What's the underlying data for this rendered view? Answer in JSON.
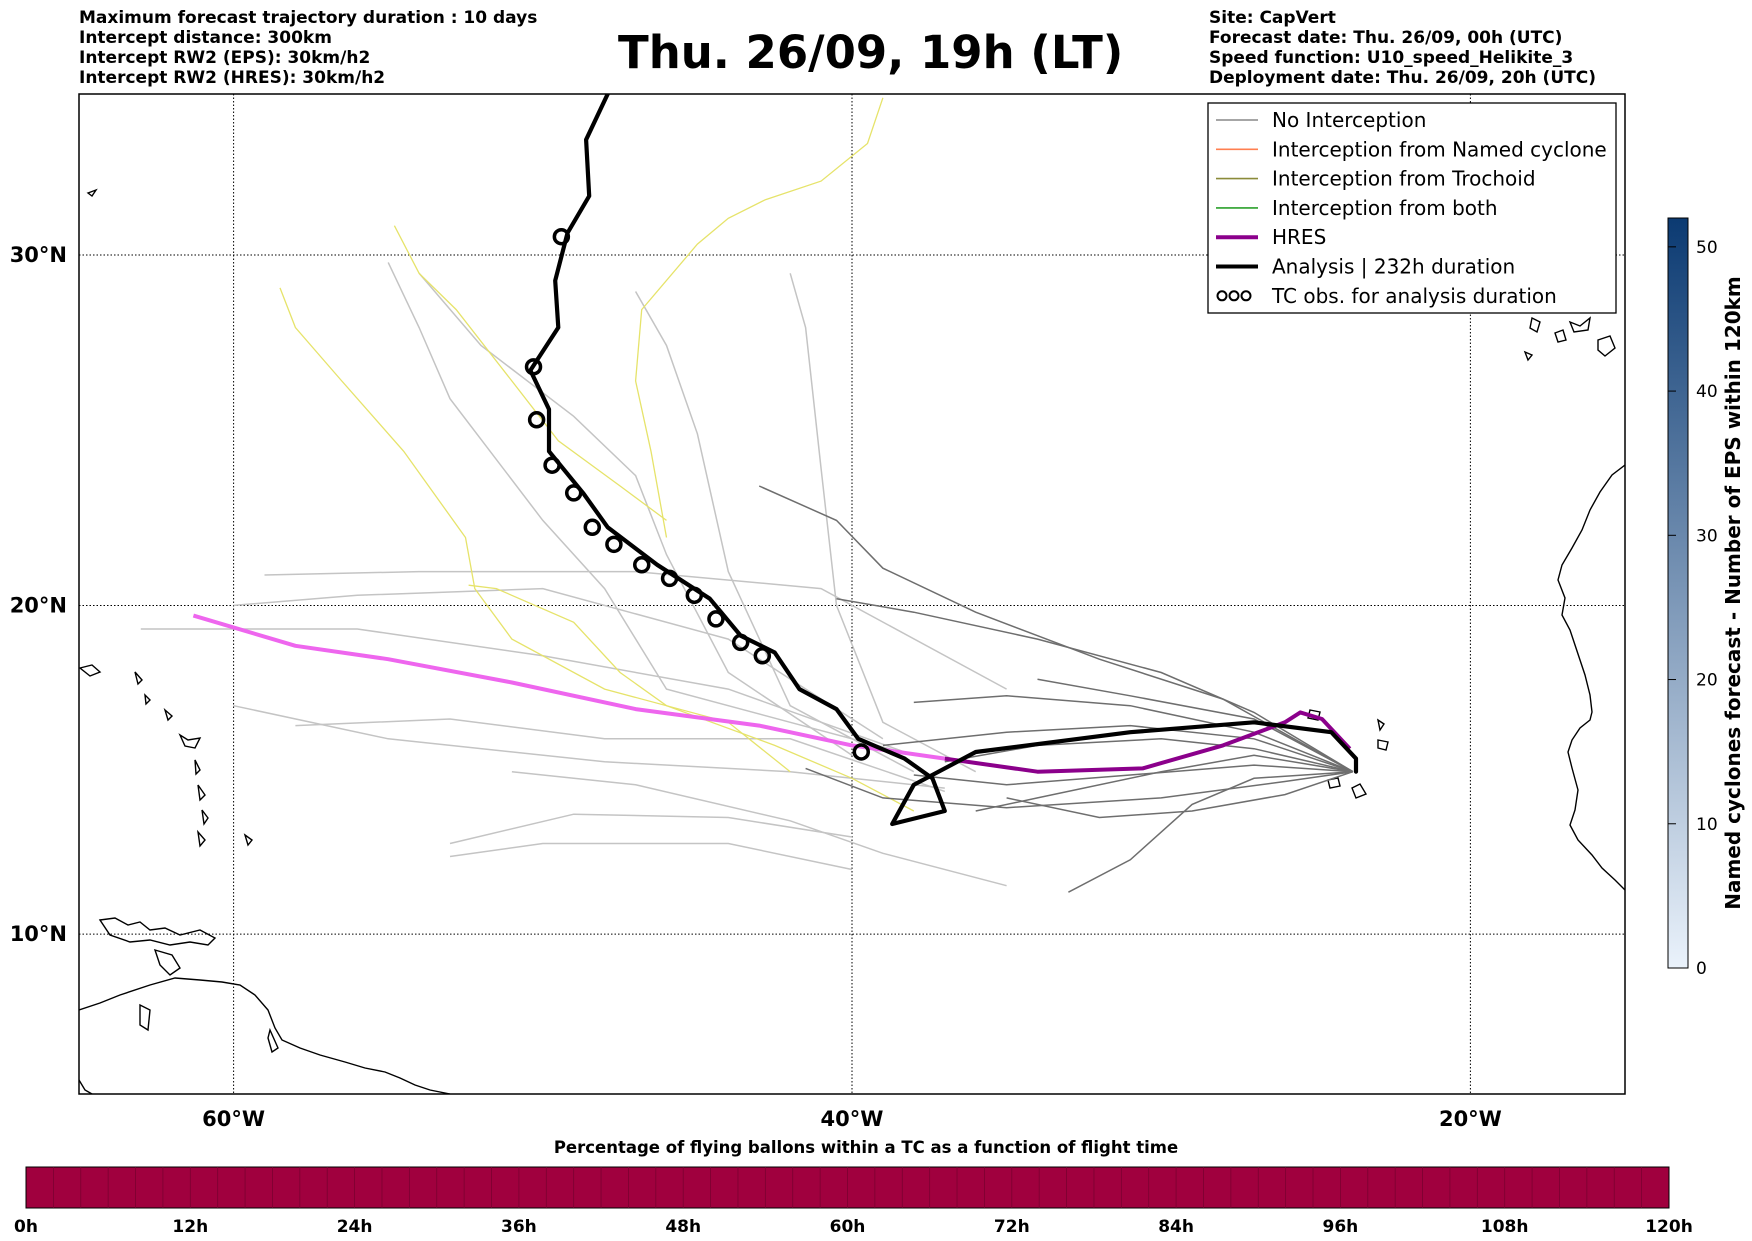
{
  "header": {
    "left": [
      "Maximum forecast trajectory duration : 10 days",
      "Intercept distance: 300km",
      "Intercept RW2 (EPS):  30km/h2",
      "Intercept RW2 (HRES): 30km/h2"
    ],
    "title": "Thu. 26/09, 19h (LT)",
    "right": [
      "Site: CapVert",
      "Forecast date: Thu. 26/09, 00h (UTC)",
      "Speed function: U10_speed_Helikite_3",
      "Deployment date: Thu. 26/09, 20h (UTC)"
    ]
  },
  "map": {
    "lon_range": [
      -65,
      -15
    ],
    "lat_range": [
      5,
      34.3
    ],
    "lat_ticks": [
      "30°N",
      "20°N",
      "10°N"
    ],
    "lon_ticks": [
      "60°W",
      "40°W",
      "20°W"
    ],
    "lat_values": [
      30,
      20,
      10
    ],
    "lon_values": [
      -60,
      -40,
      -20
    ],
    "launch_site": {
      "lon": -23.7,
      "lat": 15.0
    }
  },
  "legend": {
    "items": [
      {
        "label": "No Interception",
        "color": "#888888",
        "style": "thin"
      },
      {
        "label": "Interception from Named cyclone",
        "color": "#ff7f50",
        "style": "thin"
      },
      {
        "label": "Interception from Trochoid",
        "color": "#8b8b3a",
        "style": "thin"
      },
      {
        "label": "Interception from both",
        "color": "#2ca02c",
        "style": "thin"
      },
      {
        "label": "HRES",
        "color": "#8b008b",
        "style": "thick"
      },
      {
        "label": "Analysis | 232h duration",
        "color": "#000000",
        "style": "thick"
      },
      {
        "label": "TC obs. for analysis duration",
        "color": "#000000",
        "style": "loops"
      }
    ]
  },
  "tracks": {
    "hres": [
      [
        -61.3,
        19.7
      ],
      [
        -58,
        18.8
      ],
      [
        -55,
        18.4
      ],
      [
        -51,
        17.7
      ],
      [
        -47,
        16.9
      ],
      [
        -43,
        16.4
      ],
      [
        -40,
        15.8
      ],
      [
        -37,
        15.4
      ],
      [
        -34,
        15.0
      ],
      [
        -30.6,
        15.1
      ],
      [
        -28,
        15.8
      ],
      [
        -26,
        16.5
      ],
      [
        -25.5,
        16.8
      ],
      [
        -24.8,
        16.6
      ],
      [
        -23.9,
        15.7
      ]
    ],
    "hres_pink_until_index": 7,
    "analysis": [
      [
        -47.9,
        34.3
      ],
      [
        -48.6,
        33.1
      ],
      [
        -48.5,
        31.6
      ],
      [
        -49.2,
        30.6
      ],
      [
        -49.6,
        29.3
      ],
      [
        -49.5,
        28.0
      ],
      [
        -50.4,
        26.8
      ],
      [
        -49.8,
        25.7
      ],
      [
        -49.8,
        24.5
      ],
      [
        -48.7,
        23.3
      ],
      [
        -47.9,
        22.3
      ],
      [
        -46.3,
        21.2
      ],
      [
        -44.6,
        20.2
      ],
      [
        -43.6,
        19.1
      ],
      [
        -42.5,
        18.6
      ],
      [
        -41.7,
        17.5
      ],
      [
        -40.5,
        16.9
      ],
      [
        -39.8,
        16.0
      ],
      [
        -38.3,
        15.4
      ],
      [
        -37.4,
        14.8
      ],
      [
        -37.0,
        13.8
      ],
      [
        -38.7,
        13.4
      ],
      [
        -38.0,
        14.6
      ],
      [
        -36.0,
        15.6
      ],
      [
        -31.0,
        16.2
      ],
      [
        -27.0,
        16.5
      ],
      [
        -24.5,
        16.2
      ],
      [
        -23.7,
        15.4
      ],
      [
        -23.7,
        15.0
      ]
    ],
    "analysis_loops": [
      [
        -49.4,
        30.5
      ],
      [
        -50.3,
        26.9
      ],
      [
        -50.2,
        25.4
      ],
      [
        -49.7,
        24.1
      ],
      [
        -49.0,
        23.3
      ],
      [
        -48.4,
        22.3
      ],
      [
        -47.7,
        21.8
      ],
      [
        -46.8,
        21.2
      ],
      [
        -45.9,
        20.8
      ],
      [
        -45.1,
        20.3
      ],
      [
        -44.4,
        19.6
      ],
      [
        -43.6,
        18.9
      ],
      [
        -42.9,
        18.5
      ],
      [
        -39.7,
        15.6
      ]
    ],
    "gray": [
      [
        [
          -23.8,
          15.0
        ],
        [
          -27,
          15.7
        ],
        [
          -30,
          16.0
        ],
        [
          -34,
          15.8
        ],
        [
          -37,
          15.3
        ]
      ],
      [
        [
          -23.8,
          15.0
        ],
        [
          -27,
          16.2
        ],
        [
          -31,
          17.0
        ],
        [
          -35,
          17.3
        ],
        [
          -38,
          17.1
        ]
      ],
      [
        [
          -23.8,
          15.0
        ],
        [
          -27,
          16.8
        ],
        [
          -30,
          18.0
        ],
        [
          -34,
          19.0
        ],
        [
          -38,
          19.8
        ],
        [
          -40.5,
          20.2
        ]
      ],
      [
        [
          -23.8,
          15.0
        ],
        [
          -27,
          15.2
        ],
        [
          -31,
          14.9
        ],
        [
          -35,
          14.6
        ],
        [
          -38,
          14.9
        ]
      ],
      [
        [
          -23.8,
          15.0
        ],
        [
          -26,
          14.3
        ],
        [
          -29,
          13.8
        ],
        [
          -32,
          13.6
        ],
        [
          -35,
          14.2
        ]
      ],
      [
        [
          -23.8,
          15.0
        ],
        [
          -27,
          14.8
        ],
        [
          -29,
          14.0
        ],
        [
          -31,
          12.3
        ],
        [
          -33,
          11.3
        ]
      ],
      [
        [
          -23.8,
          15.0
        ],
        [
          -27,
          16.0
        ],
        [
          -31,
          16.4
        ],
        [
          -35,
          16.2
        ],
        [
          -39,
          15.8
        ]
      ],
      [
        [
          -23.8,
          15.0
        ],
        [
          -27,
          16.6
        ],
        [
          -31,
          17.3
        ],
        [
          -34,
          17.8
        ]
      ],
      [
        [
          -23.8,
          15.0
        ],
        [
          -28,
          17.2
        ],
        [
          -32,
          18.4
        ],
        [
          -36,
          19.8
        ],
        [
          -39,
          21.1
        ],
        [
          -40.5,
          22.5
        ],
        [
          -43,
          23.5
        ]
      ],
      [
        [
          -23.8,
          15.0
        ],
        [
          -27,
          15.5
        ],
        [
          -30,
          15.0
        ],
        [
          -34,
          14.2
        ],
        [
          -36,
          13.8
        ]
      ],
      [
        [
          -23.8,
          15.0
        ],
        [
          -26,
          14.7
        ],
        [
          -30,
          14.2
        ],
        [
          -35,
          13.9
        ],
        [
          -39,
          14.2
        ],
        [
          -41.5,
          15.1
        ]
      ]
    ],
    "lightgray": [
      [
        [
          -37,
          14.5
        ],
        [
          -42,
          15.0
        ],
        [
          -48,
          15.3
        ],
        [
          -55,
          16.0
        ],
        [
          -60,
          17.0
        ]
      ],
      [
        [
          -37,
          14.4
        ],
        [
          -42,
          16.0
        ],
        [
          -48,
          16.0
        ],
        [
          -53,
          16.6
        ],
        [
          -58,
          16.4
        ]
      ],
      [
        [
          -38,
          15.5
        ],
        [
          -44,
          17.5
        ],
        [
          -50,
          18.5
        ],
        [
          -56,
          19.3
        ],
        [
          -63,
          19.3
        ]
      ],
      [
        [
          -39,
          16.0
        ],
        [
          -44,
          19.0
        ],
        [
          -50,
          20.5
        ],
        [
          -56,
          20.3
        ],
        [
          -60,
          20.0
        ]
      ],
      [
        [
          -35,
          17.5
        ],
        [
          -41,
          20.5
        ],
        [
          -47,
          21.0
        ],
        [
          -54,
          21.0
        ],
        [
          -59,
          20.9
        ]
      ],
      [
        [
          -38,
          15.5
        ],
        [
          -42,
          16.5
        ],
        [
          -46,
          17.5
        ],
        [
          -48,
          20.5
        ],
        [
          -50,
          22.5
        ],
        [
          -53,
          26.0
        ],
        [
          -54,
          28.0
        ],
        [
          -55,
          29.8
        ]
      ],
      [
        [
          -40,
          15.5
        ],
        [
          -44,
          18.0
        ],
        [
          -46,
          21.5
        ],
        [
          -47,
          23.8
        ],
        [
          -49,
          25.5
        ],
        [
          -52,
          27.5
        ],
        [
          -54,
          29.5
        ]
      ],
      [
        [
          -38,
          15.0
        ],
        [
          -42,
          17.0
        ],
        [
          -44,
          21.0
        ],
        [
          -45,
          25.0
        ],
        [
          -46,
          27.5
        ],
        [
          -47,
          29.0
        ]
      ],
      [
        [
          -36,
          15.0
        ],
        [
          -39,
          16.5
        ],
        [
          -40.5,
          20.0
        ],
        [
          -41,
          24.0
        ],
        [
          -41.5,
          28.0
        ],
        [
          -42,
          29.5
        ]
      ],
      [
        [
          -40,
          13.0
        ],
        [
          -44,
          13.6
        ],
        [
          -49,
          13.7
        ],
        [
          -53,
          12.8
        ]
      ],
      [
        [
          -40,
          12.0
        ],
        [
          -44,
          12.8
        ],
        [
          -50,
          12.8
        ],
        [
          -53,
          12.4
        ]
      ],
      [
        [
          -35,
          11.5
        ],
        [
          -39,
          12.5
        ],
        [
          -42,
          13.5
        ],
        [
          -47,
          14.6
        ],
        [
          -51,
          15.0
        ]
      ]
    ],
    "yellow": [
      [
        [
          -42,
          15.0
        ],
        [
          -44,
          16.5
        ],
        [
          -48,
          17.5
        ],
        [
          -51,
          19.0
        ],
        [
          -52.2,
          20.5
        ],
        [
          -52.5,
          22.0
        ],
        [
          -54.5,
          24.5
        ],
        [
          -56.5,
          26.5
        ],
        [
          -58.0,
          28.0
        ],
        [
          -58.5,
          29.1
        ]
      ],
      [
        [
          -38.0,
          13.8
        ],
        [
          -40.0,
          14.8
        ],
        [
          -42.5,
          15.8
        ],
        [
          -46.0,
          17.0
        ],
        [
          -47.5,
          18.0
        ],
        [
          -49,
          19.5
        ],
        [
          -51.5,
          20.5
        ],
        [
          -52.4,
          20.6
        ]
      ],
      [
        [
          -46.0,
          22.5
        ],
        [
          -47.5,
          23.5
        ],
        [
          -49.5,
          24.8
        ],
        [
          -51.0,
          26.5
        ],
        [
          -52.8,
          28.5
        ],
        [
          -54.0,
          29.5
        ],
        [
          -54.8,
          30.8
        ]
      ],
      [
        [
          -46.0,
          22.0
        ],
        [
          -46.5,
          24.5
        ],
        [
          -47.0,
          26.5
        ],
        [
          -46.8,
          28.5
        ],
        [
          -45.0,
          30.3
        ],
        [
          -44.0,
          31.0
        ],
        [
          -42.8,
          31.5
        ],
        [
          -41.0,
          32.0
        ],
        [
          -39.5,
          33.0
        ],
        [
          -39.0,
          34.2
        ]
      ]
    ]
  },
  "colorbar_right": {
    "label": "Named cyclones forecast - Number of EPS within 120km",
    "ticks": [
      0,
      10,
      20,
      30,
      40,
      50
    ],
    "max": 52,
    "color_low": "#eaf2fb",
    "color_high": "#0b3a72"
  },
  "colorbar_bottom": {
    "title": "Percentage of flying ballons within a TC as a function of flight time",
    "ticks": [
      "0h",
      "12h",
      "24h",
      "36h",
      "48h",
      "60h",
      "72h",
      "84h",
      "96h",
      "108h",
      "120h"
    ],
    "color": "#a0003e"
  }
}
